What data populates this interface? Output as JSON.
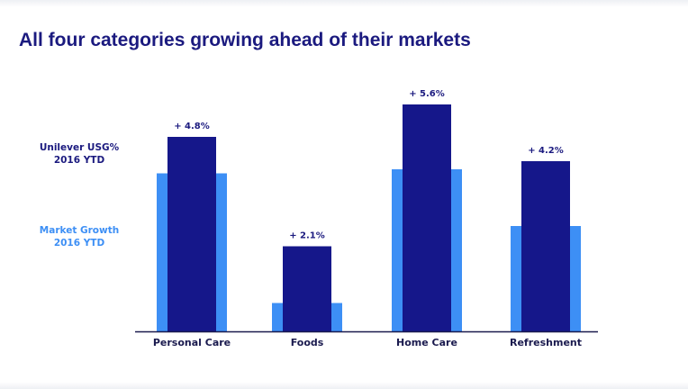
{
  "title": "All four categories growing ahead of their markets",
  "legend": {
    "usg_line1": "Unilever USG%",
    "usg_line2": "2016 YTD",
    "market_line1": "Market Growth",
    "market_line2": "2016 YTD"
  },
  "colors": {
    "title": "#1b1a7f",
    "unilever": "#15178a",
    "market": "#3d8ff5",
    "axis": "#1a1a4e"
  },
  "chart_data": {
    "type": "bar",
    "title": "All four categories growing ahead of their markets",
    "categories": [
      "Personal Care",
      "Foods",
      "Home Care",
      "Refreshment"
    ],
    "series": [
      {
        "name": "Unilever USG% 2016 YTD",
        "values": [
          4.8,
          2.1,
          5.6,
          4.2
        ],
        "labels": [
          "+ 4.8%",
          "+ 2.1%",
          "+ 5.6%",
          "+ 4.2%"
        ]
      },
      {
        "name": "Market Growth 2016 YTD",
        "values": [
          3.9,
          0.7,
          4.0,
          2.6
        ]
      }
    ],
    "ylim": [
      0,
      6
    ],
    "xlabel": "",
    "ylabel": "",
    "grid": false,
    "legend_position": "left"
  }
}
